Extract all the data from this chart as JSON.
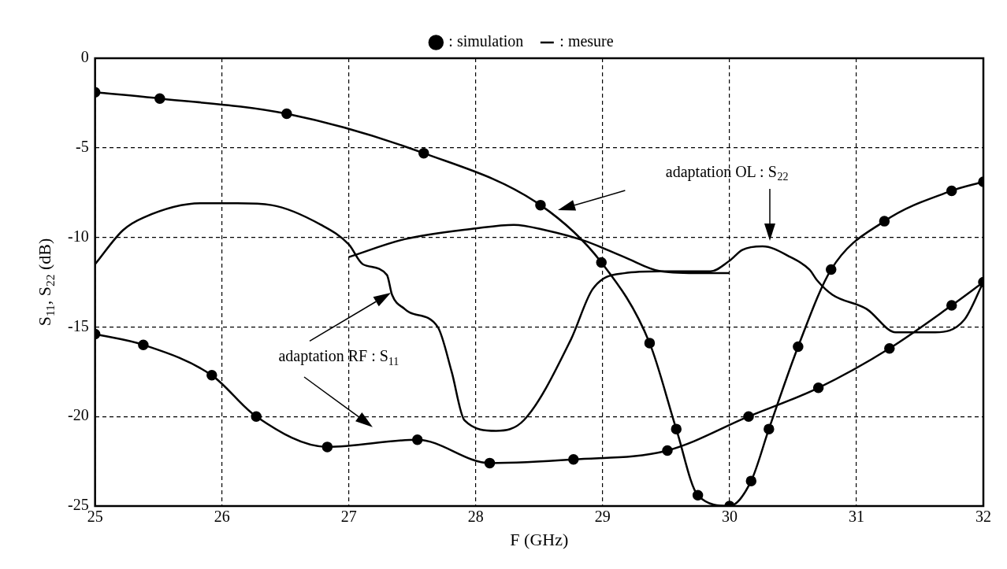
{
  "chart_data": {
    "type": "line",
    "xlabel": "F (GHz)",
    "ylabel": "S$_{11}$, S$_{22}$ (dB)",
    "xlim": [
      25,
      32
    ],
    "xticks": [
      25,
      26,
      27,
      28,
      29,
      30,
      31,
      32
    ],
    "ylim": [
      -25,
      0
    ],
    "yticks": [
      -25,
      -20,
      -15,
      -10,
      -5,
      0
    ],
    "grid": true,
    "legend": "top",
    "line_style": "solid",
    "annotations": [
      "adaptation OL : S$_{22}$",
      "adaptation RF : S$_{11}$"
    ],
    "series": [
      {
        "name": ": simulation",
        "color": "#000000",
        "marker": "circle",
        "x": [
          25,
          25.51,
          26.51,
          27.59,
          28.51,
          28.99,
          29.37,
          29.58,
          29.75,
          30.0,
          30.17,
          30.31,
          30.54,
          30.8,
          31.22,
          31.75,
          32
        ],
        "values": [
          -1.9,
          -2.25,
          -3.1,
          -5.3,
          -8.2,
          -11.4,
          -15.9,
          -20.7,
          -24.4,
          -25,
          -23.6,
          -20.7,
          -16.1,
          -11.8,
          -9.1,
          -7.4,
          -6.9
        ]
      },
      {
        "color": "#000000",
        "marker": "circle",
        "x": [
          25,
          25.38,
          25.92,
          26.27,
          26.83,
          27.54,
          28.11,
          28.77,
          29.51,
          30.15,
          30.7,
          31.26,
          31.75,
          32
        ],
        "values": [
          -15.4,
          -16.0,
          -17.7,
          -20.0,
          -21.7,
          -21.3,
          -22.6,
          -22.4,
          -21.9,
          -20.0,
          -18.4,
          -16.2,
          -13.8,
          -12.5
        ]
      },
      {
        "name": ": mesure",
        "color": "#000000",
        "marker": "none",
        "x": [
          27.0,
          27.44,
          28.0,
          28.3,
          28.55,
          28.86,
          29.17,
          29.46,
          29.78,
          30.0
        ],
        "values": [
          -11.1,
          -10.1,
          -9.5,
          -9.3,
          -9.6,
          -10.2,
          -11.1,
          -11.9,
          -12.0,
          -12.0
        ]
      },
      {
        "color": "#000000",
        "marker": "none",
        "x": [
          25,
          25.22,
          25.38,
          25.83,
          26.12,
          26.39,
          26.78,
          27.0,
          27.11,
          27.3,
          27.34,
          27.44,
          27.48,
          27.7,
          27.81,
          27.91,
          28.16,
          28.38,
          28.75,
          28.92,
          29.17,
          29.46,
          29.85,
          30.0,
          30.1,
          30.26,
          30.48,
          30.63,
          30.69,
          30.81,
          31.08,
          31.31,
          31.62,
          31.85,
          32
        ],
        "values": [
          -11.5,
          -9.6,
          -8.9,
          -8.1,
          -8.1,
          -8.2,
          -9.3,
          -10.4,
          -11.5,
          -12.1,
          -13.2,
          -14.0,
          -14.2,
          -15.0,
          -17.5,
          -20.2,
          -20.8,
          -20.2,
          -15.7,
          -12.9,
          -12.0,
          -11.9,
          -11.9,
          -11.3,
          -10.7,
          -10.5,
          -11.1,
          -11.8,
          -12.4,
          -13.2,
          -14.0,
          -15.3,
          -15.3,
          -14.6,
          -12.5
        ]
      }
    ]
  }
}
